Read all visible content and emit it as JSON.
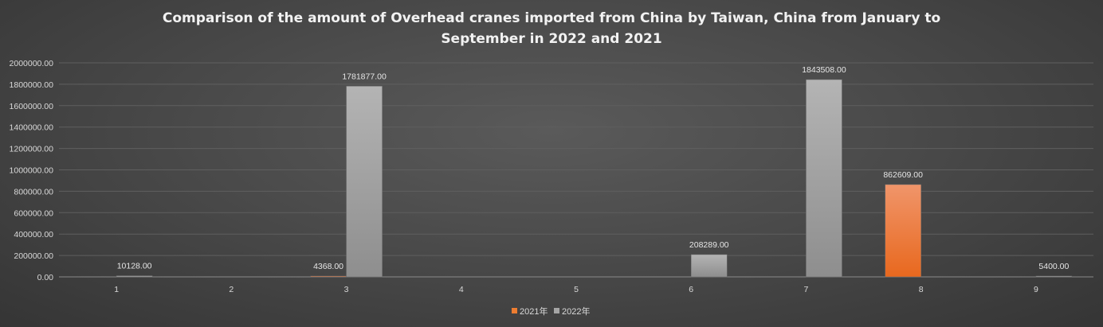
{
  "chart_data": {
    "type": "bar",
    "title": "Comparison of the amount of Overhead cranes imported from China by Taiwan, China from January to September in 2022 and 2021",
    "title_lines": [
      "Comparison of the amount of Overhead cranes imported from China by Taiwan, China from January to",
      "September in 2022 and 2021"
    ],
    "categories": [
      "1",
      "2",
      "3",
      "4",
      "5",
      "6",
      "7",
      "8",
      "9"
    ],
    "series": [
      {
        "name": "2021年",
        "color": "#ed7d31",
        "values": [
          null,
          null,
          4368,
          null,
          null,
          null,
          null,
          862609,
          null
        ],
        "labels": [
          "",
          "",
          "4368.00",
          "",
          "",
          "",
          "",
          "862609.00",
          ""
        ]
      },
      {
        "name": "2022年",
        "color": "#a5a5a5",
        "values": [
          10128,
          null,
          1781877,
          null,
          null,
          208289,
          1843508,
          null,
          5400
        ],
        "labels": [
          "10128.00",
          "",
          "1781877.00",
          "",
          "",
          "208289.00",
          "1843508.00",
          "",
          "5400.00"
        ]
      }
    ],
    "ylim": [
      0,
      2000000
    ],
    "yticks": [
      "0.00",
      "200000.00",
      "400000.00",
      "600000.00",
      "800000.00",
      "1000000.00",
      "1200000.00",
      "1400000.00",
      "1600000.00",
      "1800000.00",
      "2000000.00"
    ],
    "xlabel": "",
    "ylabel": "",
    "grid": true,
    "legend_position": "bottom"
  }
}
